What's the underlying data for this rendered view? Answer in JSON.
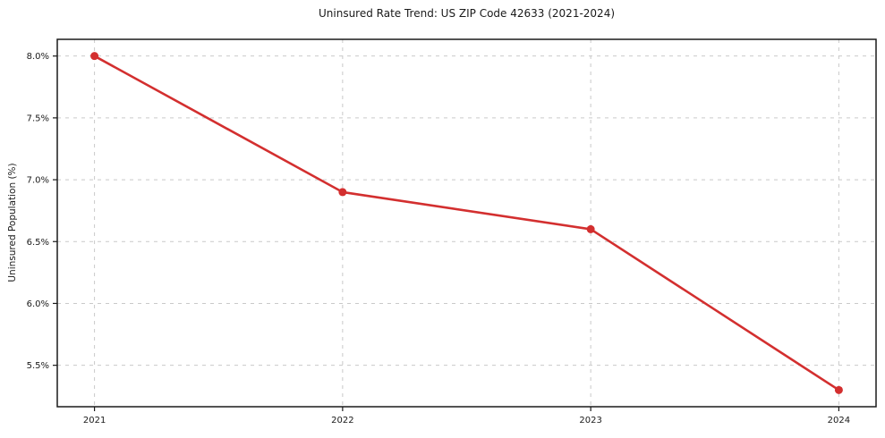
{
  "chart_data": {
    "type": "line",
    "title": "Uninsured Rate Trend: US ZIP Code 42633 (2021-2024)",
    "xlabel": "",
    "ylabel": "Uninsured Population (%)",
    "x": [
      2021,
      2022,
      2023,
      2024
    ],
    "series": [
      {
        "name": "Uninsured Rate",
        "values": [
          8.0,
          6.9,
          6.6,
          5.3
        ]
      }
    ],
    "x_tick_labels": [
      "2021",
      "2022",
      "2023",
      "2024"
    ],
    "y_tick_labels": [
      "5.5%",
      "6.0%",
      "6.5%",
      "7.0%",
      "7.5%",
      "8.0%"
    ],
    "y_tick_values": [
      5.5,
      6.0,
      6.5,
      7.0,
      7.5,
      8.0
    ],
    "xlim": [
      2020.85,
      2024.15
    ],
    "ylim": [
      5.165,
      8.135
    ],
    "grid": true,
    "legend": "none",
    "colors": {
      "line": "#d32f2f",
      "marker": "#d32f2f",
      "grid": "#c9c9c9",
      "axis": "#1a1a1a",
      "background": "#ffffff"
    }
  }
}
